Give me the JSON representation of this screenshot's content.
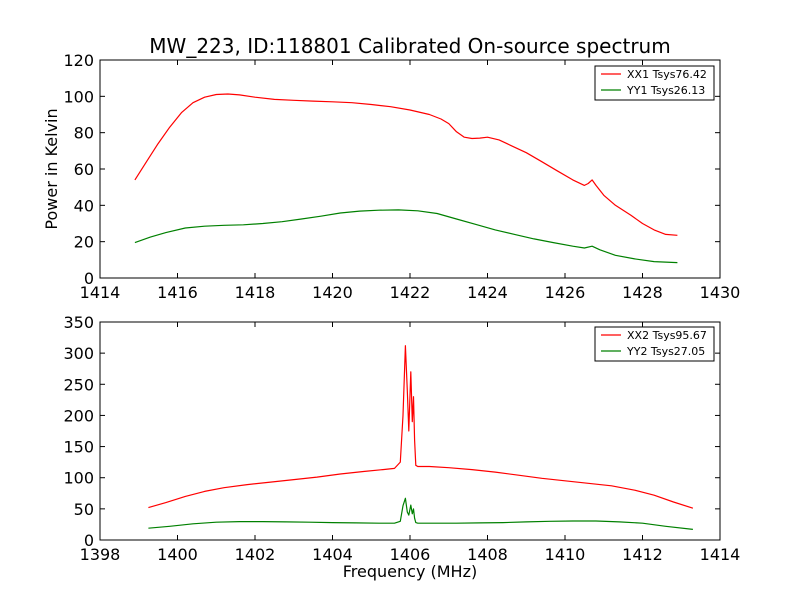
{
  "chart_data": [
    {
      "type": "line",
      "title": "MW_223, ID:118801 Calibrated On-source spectrum",
      "xlabel": "",
      "ylabel": "Power in Kelvin",
      "xlim": [
        1414,
        1430
      ],
      "ylim": [
        0,
        120
      ],
      "xticks": [
        "1414",
        "1416",
        "1418",
        "1420",
        "1422",
        "1424",
        "1426",
        "1428",
        "1430"
      ],
      "yticks": [
        "0",
        "20",
        "40",
        "60",
        "80",
        "100",
        "120"
      ],
      "legend_position": "top-right",
      "series": [
        {
          "name": "XX1 Tsys76.42",
          "color": "#ff0000",
          "x": [
            1414.9,
            1415.2,
            1415.5,
            1415.8,
            1416.1,
            1416.4,
            1416.7,
            1417.0,
            1417.3,
            1417.6,
            1418.0,
            1418.5,
            1419.0,
            1419.5,
            1420.0,
            1420.5,
            1421.0,
            1421.5,
            1422.0,
            1422.5,
            1422.8,
            1423.0,
            1423.2,
            1423.4,
            1423.6,
            1423.8,
            1424.0,
            1424.3,
            1424.6,
            1425.0,
            1425.4,
            1425.8,
            1426.2,
            1426.5,
            1426.6,
            1426.7,
            1426.8,
            1427.0,
            1427.3,
            1427.7,
            1428.0,
            1428.3,
            1428.6,
            1428.9
          ],
          "y": [
            54,
            64,
            74,
            83,
            91,
            96.5,
            99.5,
            101,
            101.3,
            100.8,
            99.5,
            98.3,
            97.8,
            97.4,
            97.0,
            96.5,
            95.5,
            94.3,
            92.5,
            90.0,
            87.5,
            85.0,
            80.5,
            77.5,
            76.8,
            77.0,
            77.5,
            76.0,
            73.0,
            69.0,
            64.0,
            59.0,
            54.0,
            51.0,
            52.0,
            54.0,
            51.0,
            45.5,
            40.0,
            34.5,
            30.0,
            26.5,
            24.0,
            23.5
          ]
        },
        {
          "name": "YY1 Tsys26.13",
          "color": "#008000",
          "x": [
            1414.9,
            1415.3,
            1415.7,
            1416.2,
            1416.7,
            1417.2,
            1417.7,
            1418.2,
            1418.7,
            1419.2,
            1419.7,
            1420.2,
            1420.7,
            1421.2,
            1421.7,
            1422.2,
            1422.7,
            1423.2,
            1423.7,
            1424.2,
            1424.7,
            1425.2,
            1425.7,
            1426.2,
            1426.5,
            1426.7,
            1426.9,
            1427.3,
            1427.8,
            1428.3,
            1428.9
          ],
          "y": [
            19.5,
            22.5,
            25,
            27.5,
            28.5,
            29,
            29.3,
            30,
            31,
            32.5,
            34,
            35.8,
            36.8,
            37.3,
            37.5,
            37.0,
            35.5,
            32.5,
            29.5,
            26.5,
            24.0,
            21.5,
            19.5,
            17.5,
            16.5,
            17.5,
            15.5,
            12.5,
            10.5,
            9.0,
            8.5
          ]
        }
      ]
    },
    {
      "type": "line",
      "title": "",
      "xlabel": "Frequency (MHz)",
      "ylabel": "",
      "xlim": [
        1398,
        1414
      ],
      "ylim": [
        0,
        350
      ],
      "xticks": [
        "1398",
        "1400",
        "1402",
        "1404",
        "1406",
        "1408",
        "1410",
        "1412",
        "1414"
      ],
      "yticks": [
        "0",
        "50",
        "100",
        "150",
        "200",
        "250",
        "300",
        "350"
      ],
      "legend_position": "top-right",
      "series": [
        {
          "name": "XX2 Tsys95.67",
          "color": "#ff0000",
          "x": [
            1399.25,
            1399.7,
            1400.2,
            1400.7,
            1401.2,
            1401.8,
            1402.4,
            1403.0,
            1403.6,
            1404.2,
            1404.8,
            1405.3,
            1405.6,
            1405.75,
            1405.82,
            1405.88,
            1405.93,
            1405.97,
            1406.02,
            1406.06,
            1406.09,
            1406.12,
            1406.15,
            1406.2,
            1406.5,
            1407.0,
            1407.6,
            1408.2,
            1408.8,
            1409.4,
            1410.0,
            1410.6,
            1411.2,
            1411.8,
            1412.3,
            1412.8,
            1413.3
          ],
          "y": [
            52,
            60,
            70,
            78,
            84,
            89,
            93,
            97,
            101,
            106,
            110,
            113,
            115,
            125,
            200,
            312,
            240,
            175,
            270,
            190,
            230,
            160,
            120,
            118,
            118,
            116,
            113,
            109,
            104,
            99,
            95,
            91,
            87,
            80,
            72,
            61,
            51
          ]
        },
        {
          "name": "YY2 Tsys27.05",
          "color": "#008000",
          "x": [
            1399.25,
            1399.8,
            1400.4,
            1401.0,
            1401.6,
            1402.2,
            1402.8,
            1403.4,
            1404.0,
            1404.6,
            1405.2,
            1405.6,
            1405.75,
            1405.82,
            1405.88,
            1405.93,
            1405.97,
            1406.02,
            1406.06,
            1406.09,
            1406.12,
            1406.15,
            1406.2,
            1406.6,
            1407.2,
            1407.8,
            1408.4,
            1409.0,
            1409.6,
            1410.2,
            1410.8,
            1411.4,
            1412.0,
            1412.6,
            1413.3
          ],
          "y": [
            19,
            22,
            26,
            28.5,
            29.5,
            29.5,
            29,
            28.5,
            28,
            27.5,
            27,
            27,
            30,
            55,
            67,
            45,
            40,
            56,
            42,
            50,
            35,
            28,
            27,
            27,
            27,
            27.5,
            28,
            29,
            30,
            30.5,
            30.5,
            29,
            27,
            22,
            17
          ]
        }
      ]
    }
  ]
}
